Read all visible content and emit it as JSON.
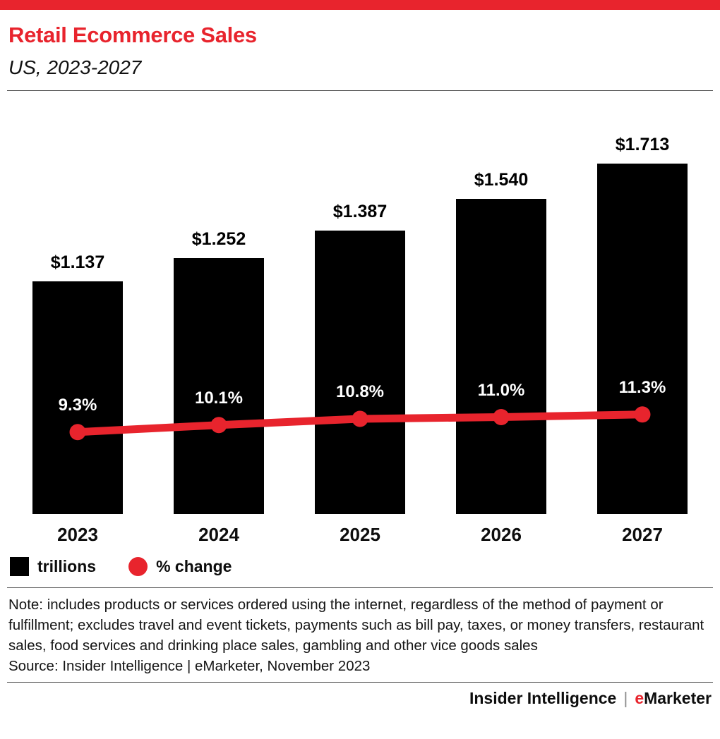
{
  "header": {
    "title": "Retail Ecommerce Sales",
    "subtitle": "US, 2023-2027"
  },
  "chart_data": {
    "type": "bar",
    "title": "Retail Ecommerce Sales",
    "subtitle": "US, 2023-2027",
    "categories": [
      "2023",
      "2024",
      "2025",
      "2026",
      "2027"
    ],
    "series": [
      {
        "name": "trillions",
        "type": "bar",
        "values": [
          1.137,
          1.252,
          1.387,
          1.54,
          1.713
        ],
        "labels": [
          "$1.137",
          "$1.252",
          "$1.387",
          "$1.540",
          "$1.713"
        ],
        "color": "#000000"
      },
      {
        "name": "% change",
        "type": "line",
        "values": [
          9.3,
          10.1,
          10.8,
          11.0,
          11.3
        ],
        "labels": [
          "9.3%",
          "10.1%",
          "10.8%",
          "11.0%",
          "11.3%"
        ],
        "color": "#e8242d"
      }
    ],
    "xlabel": "",
    "ylabel": "",
    "ylim_bar": [
      0,
      1.9
    ],
    "grid": false,
    "legend_position": "bottom"
  },
  "legend": {
    "items": [
      {
        "label": "trillions",
        "swatch": "square",
        "color": "#000000"
      },
      {
        "label": "% change",
        "swatch": "circle",
        "color": "#e8242d"
      }
    ]
  },
  "note": "Note: includes products or services ordered using the internet, regardless of the method of payment or fulfillment; excludes travel and event tickets, payments such as bill pay, taxes, or money transfers, restaurant sales, food services and drinking place sales, gambling and other vice goods sales",
  "source": "Source: Insider Intelligence | eMarketer, November 2023",
  "footer": {
    "brand_left": "Insider Intelligence",
    "separator": "|",
    "brand_e": "e",
    "brand_rest": "Marketer"
  },
  "colors": {
    "accent": "#e8242d",
    "bar": "#000000"
  }
}
